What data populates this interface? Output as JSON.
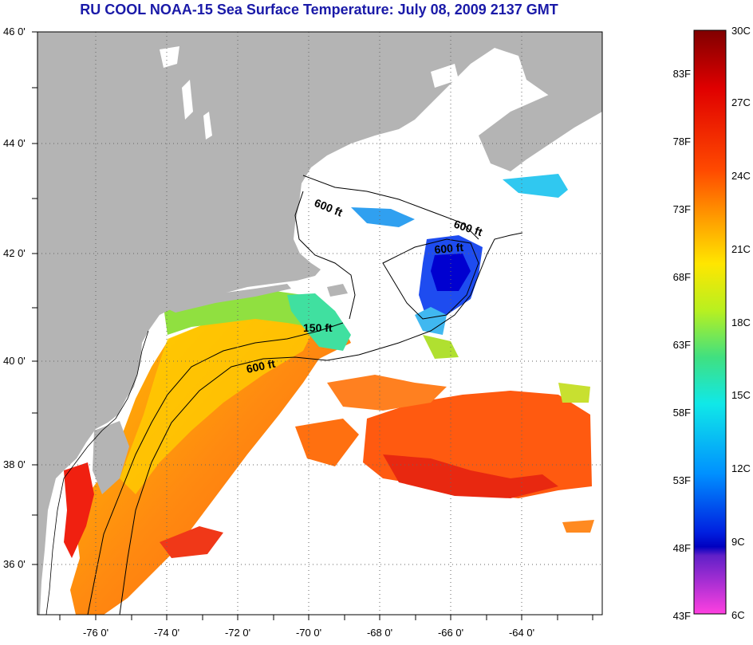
{
  "title": "RU COOL  NOAA-15  Sea Surface Temperature:  July 08, 2009 2137 GMT",
  "map": {
    "lat_labels": [
      "46 0'",
      "44 0'",
      "42 0'",
      "40 0'",
      "38 0'",
      "36 0'"
    ],
    "lon_labels": [
      "-76 0'",
      "-74 0'",
      "-72 0'",
      "-70 0'",
      "-68 0'",
      "-66 0'",
      "-64 0'"
    ],
    "contour_labels": [
      "600 ft",
      "600 ft",
      "600 ft",
      "150 ft",
      "600 ft"
    ],
    "colors": {
      "land": "#b4b4b4",
      "cloud": "#ffffff",
      "coastline": "#000000"
    }
  },
  "colorbar": {
    "celsius_labels": [
      "30C",
      "27C",
      "24C",
      "21C",
      "18C",
      "15C",
      "12C",
      "9C",
      "6C"
    ],
    "fahrenheit_labels": [
      "83F",
      "78F",
      "73F",
      "68F",
      "63F",
      "58F",
      "53F",
      "48F",
      "43F"
    ],
    "colors_top_to_bottom": [
      "#800000",
      "#e00000",
      "#ff4000",
      "#ff9a00",
      "#ffe000",
      "#b8f020",
      "#40e080",
      "#10e8e8",
      "#0090ff",
      "#0020e0",
      "#0000c0",
      "#8030e0",
      "#ff40e0"
    ]
  }
}
